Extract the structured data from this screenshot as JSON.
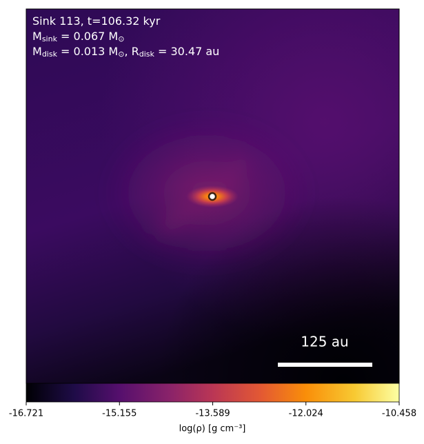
{
  "chart_data": {
    "type": "image",
    "annotations": [
      [
        {
          "text": "Sink 113, t=106.32 kyr"
        }
      ],
      [
        {
          "text": "M"
        },
        {
          "sub": "sink"
        },
        {
          "text": " = 0.067 M"
        },
        {
          "sub": "⊙"
        }
      ],
      [
        {
          "text": "M"
        },
        {
          "sub": "disk"
        },
        {
          "text": " = 0.013 M"
        },
        {
          "sub": "⊙"
        },
        {
          "text": ", R"
        },
        {
          "sub": "disk"
        },
        {
          "text": " = 30.47 au"
        }
      ]
    ],
    "scale_bar_label": "125 au",
    "colorbar": {
      "label": "log(ρ) [g cm⁻³]",
      "lim": [
        -16.721,
        -10.458
      ],
      "ticks": [
        -16.721,
        -15.155,
        -13.589,
        -12.024,
        -10.458
      ]
    }
  }
}
